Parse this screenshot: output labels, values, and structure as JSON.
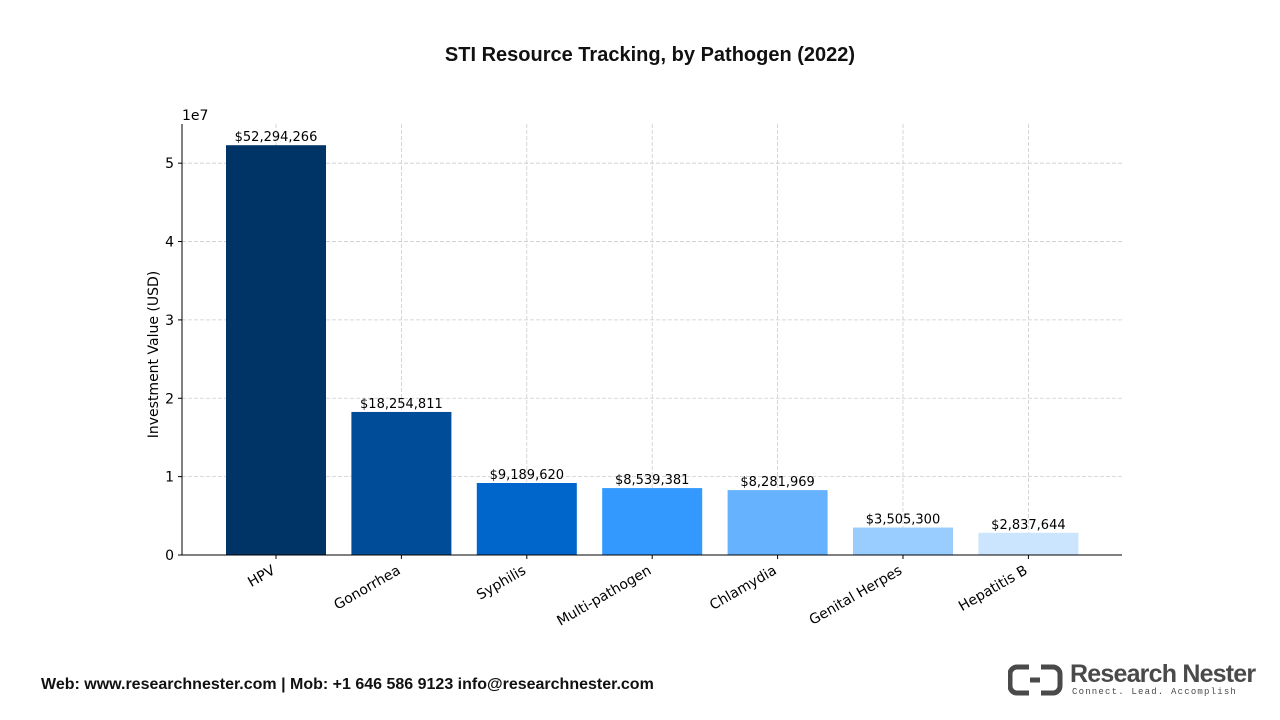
{
  "chart_data": {
    "type": "bar",
    "title": "STI Resource Tracking, by Pathogen (2022)",
    "xlabel": "",
    "ylabel": "Investment Value (USD)",
    "y_scale_label": "1e7",
    "ylim": [
      0,
      55000000
    ],
    "yticks": [
      0,
      10000000,
      20000000,
      30000000,
      40000000,
      50000000
    ],
    "ytick_labels": [
      "0",
      "1",
      "2",
      "3",
      "4",
      "5"
    ],
    "grid": true,
    "categories": [
      "HPV",
      "Gonorrhea",
      "Syphilis",
      "Multi-pathogen",
      "Chlamydia",
      "Genital Herpes",
      "Hepatitis B"
    ],
    "values": [
      52294266,
      18254811,
      9189620,
      8539381,
      8281969,
      3505300,
      2837644
    ],
    "data_labels": [
      "$52,294,266",
      "$18,254,811",
      "$9,189,620",
      "$8,539,381",
      "$8,281,969",
      "$3,505,300",
      "$2,837,644"
    ],
    "colors": [
      "#003366",
      "#004c99",
      "#0066cc",
      "#3399ff",
      "#66b2ff",
      "#99ccff",
      "#cce5ff"
    ]
  },
  "footer": {
    "contact": "Web: www.researchnester.com | Mob: +1 646 586 9123 info@researchnester.com"
  },
  "brand": {
    "name": "Research Nester",
    "tagline": "Connect. Lead. Accomplish"
  }
}
